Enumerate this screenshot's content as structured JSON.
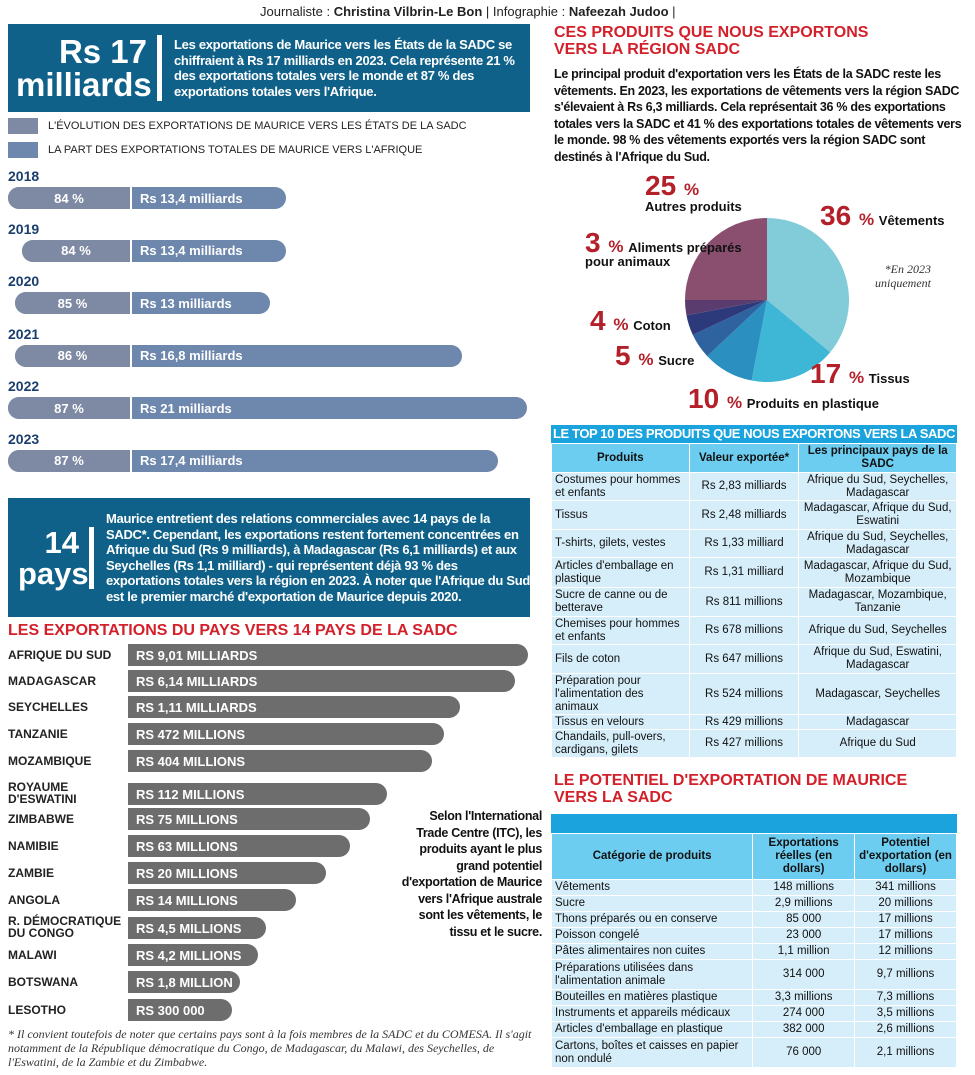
{
  "credit": {
    "journalist_label": "Journaliste :",
    "journalist": "Christina Vilbrin-Le Bon",
    "sep": "|",
    "infographic_label": "Infographie :",
    "infographic": "Nafeezah Judoo",
    "end": "|"
  },
  "box1": {
    "big1": "Rs 17",
    "big2": "milliards",
    "text": "Les exportations de Maurice vers les États de la SADC se chiffraient à Rs 17 milliards en 2023. Cela représente 21 % des exportations totales vers le monde et 87 % des exportations totales vers l'Afrique."
  },
  "box2": {
    "big1": "14",
    "big2": "pays",
    "text": "Maurice entretient des relations commerciales avec 14 pays de la SADC*. Cependant, les exportations restent fortement concentrées en Afrique du Sud (Rs 9 milliards), à Madagascar (Rs 6,1 milliards) et aux Seychelles (Rs 1,1 milliard) - qui représentent déjà 93 % des exportations totales vers la région en 2023. À noter que l'Afrique du Sud est le premier marché d'exportation de Maurice depuis 2020."
  },
  "side_note": "Selon l'International Trade Centre (ITC), les produits ayant le plus grand potentiel d'exportation de Maurice vers l'Afrique australe sont les vêtements, le tissu et le sucre.",
  "footnote": "* Il convient toutefois de noter que certains pays sont à la fois membres de la SADC et du COMESA. Il s'agit notamment de la République démocratique du Congo, de Madagascar, du Malawi, des Seychelles, de l'Eswatini, de la Zambie et du Zimbabwe.",
  "right": {
    "title": "CES PRODUITS QUE NOUS EXPORTONS VERS LA RÉGION SADC",
    "para": "Le principal produit d'exportation vers les États de la SADC reste les vêtements. En 2023, les exportations de vêtements vers la région SADC s'élevaient à Rs 6,3 milliards. Cela représentait 36 % des exportations totales vers la SADC et 41 % des exportations totales de vêtements vers le monde. 98 % des vêtements exportés vers la région SADC sont destinés à l'Afrique du Sud.",
    "note1": "*En 2023",
    "note2": "uniquement",
    "section2_title": "LE POTENTIEL D'EXPORTATION DE MAURICE VERS LA SADC"
  },
  "colors": {
    "box": "#0f6189",
    "red": "#d3202a",
    "table_header": "#6ccdf0",
    "table_row": "#d6eefa",
    "country_bar": "#6d6d6d"
  },
  "chart_data": [
    {
      "type": "bar",
      "orientation": "horizontal",
      "legend": [
        {
          "name": "L'ÉVOLUTION DES EXPORTATIONS DE MAURICE VERS LES ÉTATS DE LA SADC",
          "color": "#7e8aa3"
        },
        {
          "name": "LA PART DES EXPORTATIONS TOTALES DE MAURICE VERS L'AFRIQUE",
          "color": "#6e87ac"
        }
      ],
      "categories": [
        "2018",
        "2019",
        "2020",
        "2021",
        "2022",
        "2023"
      ],
      "share_labels": [
        "84 %",
        "84 %",
        "85 %",
        "86 %",
        "87 %",
        "87 %"
      ],
      "share_values": [
        84,
        84,
        85,
        86,
        87,
        87
      ],
      "value_labels": [
        "Rs 13,4 milliards",
        "Rs 13,4 milliards",
        "Rs 13 milliards",
        "Rs 16,8 milliards",
        "Rs 21 milliards",
        "Rs 17,4 milliards"
      ],
      "values": [
        13.4,
        13.4,
        13,
        16.8,
        21,
        17.4
      ]
    },
    {
      "type": "bar",
      "orientation": "horizontal",
      "title": "LES EXPORTATIONS DU PAYS VERS 14 PAYS DE LA SADC",
      "categories": [
        "AFRIQUE DU SUD",
        "MADAGASCAR",
        "SEYCHELLES",
        "TANZANIE",
        "MOZAMBIQUE",
        "ROYAUME D'ESWATINI",
        "ZIMBABWE",
        "NAMIBIE",
        "ZAMBIE",
        "ANGOLA",
        "R. DÉMOCRATIQUE DU CONGO",
        "MALAWI",
        "BOTSWANA",
        "LESOTHO"
      ],
      "value_labels": [
        "RS 9,01 MILLIARDS",
        "RS 6,14 MILLIARDS",
        "RS 1,11 MILLIARDS",
        "RS 472 MILLIONS",
        "RS 404 MILLIONS",
        "RS 112 MILLIONS",
        "RS 75 MILLIONS",
        "RS 63 MILLIONS",
        "RS 20 MILLIONS",
        "RS 14 MILLIONS",
        "RS 4,5 MILLIONS",
        "RS 4,2 MILLIONS",
        "RS 1,8 MILLION",
        "RS 300 000"
      ]
    },
    {
      "type": "pie",
      "slices": [
        {
          "label": "Vêtements",
          "value": 36,
          "color": "#82ccd9"
        },
        {
          "label": "Tissus",
          "value": 17,
          "color": "#3eb7d6"
        },
        {
          "label": "Produits en plastique",
          "value": 10,
          "color": "#2b8fc0"
        },
        {
          "label": "Sucre",
          "value": 5,
          "color": "#2e63a0"
        },
        {
          "label": "Coton",
          "value": 4,
          "color": "#2c3a7c"
        },
        {
          "label": "Aliments préparés pour animaux",
          "value": 3,
          "color": "#5b3c6f"
        },
        {
          "label": "Autres produits",
          "value": 25,
          "color": "#8a4f6f"
        }
      ]
    },
    {
      "type": "table",
      "title": "LE TOP 10 DES PRODUITS QUE NOUS EXPORTONS VERS LA SADC",
      "columns": [
        "Produits",
        "Valeur exportée*",
        "Les principaux pays de la SADC"
      ],
      "rows": [
        [
          "Costumes pour hommes et enfants",
          "Rs 2,83 milliards",
          "Afrique du Sud, Seychelles, Madagascar"
        ],
        [
          "Tissus",
          "Rs 2,48 milliards",
          "Madagascar, Afrique du Sud, Eswatini"
        ],
        [
          "T-shirts, gilets, vestes",
          "Rs 1,33 milliard",
          "Afrique du Sud, Seychelles, Madagascar"
        ],
        [
          "Articles d'emballage en plastique",
          "Rs 1,31 milliard",
          "Madagascar, Afrique du Sud, Mozambique"
        ],
        [
          "Sucre de canne ou de betterave",
          "Rs 811 millions",
          "Madagascar, Mozambique, Tanzanie"
        ],
        [
          "Chemises pour hommes et enfants",
          "Rs 678 millions",
          "Afrique du Sud, Seychelles"
        ],
        [
          "Fils de coton",
          "Rs 647 millions",
          "Afrique du Sud, Eswatini, Madagascar"
        ],
        [
          "Préparation pour l'alimentation des animaux",
          "Rs 524 millions",
          "Madagascar, Seychelles"
        ],
        [
          "Tissus en velours",
          "Rs 429 millions",
          "Madagascar"
        ],
        [
          "Chandails, pull-overs, cardigans, gilets",
          "Rs 427 millions",
          "Afrique du Sud"
        ]
      ]
    },
    {
      "type": "table",
      "columns": [
        "Catégorie de produits",
        "Exportations réelles (en dollars)",
        "Potentiel d'exportation (en dollars)"
      ],
      "rows": [
        [
          "Vêtements",
          "148 millions",
          "341 millions"
        ],
        [
          "Sucre",
          "2,9 millions",
          "20 millions"
        ],
        [
          "Thons préparés ou en conserve",
          "85 000",
          "17 millions"
        ],
        [
          "Poisson congelé",
          "23 000",
          "17 millions"
        ],
        [
          "Pâtes alimentaires non cuites",
          "1,1 million",
          "12 millions"
        ],
        [
          "Préparations utilisées dans l'alimentation animale",
          "314 000",
          "9,7 millions"
        ],
        [
          "Bouteilles en matières plastique",
          "3,3 millions",
          "7,3 millions"
        ],
        [
          "Instruments et appareils médicaux",
          "274 000",
          "3,5 millions"
        ],
        [
          "Articles d'emballage en plastique",
          "382 000",
          "2,6 millions"
        ],
        [
          "Cartons, boîtes et caisses en papier non ondulé",
          "76 000",
          "2,1 millions"
        ]
      ]
    }
  ]
}
